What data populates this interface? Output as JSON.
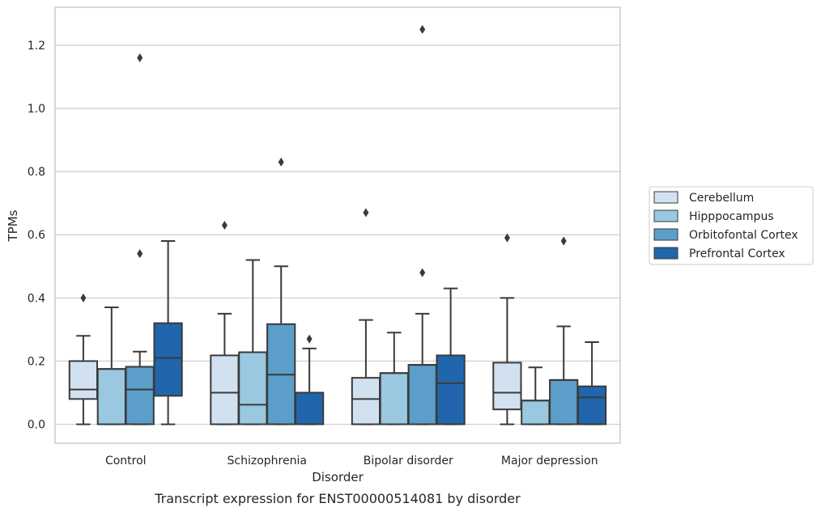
{
  "caption": "Transcript expression for ENST00000514081 by disorder",
  "chart_data": {
    "type": "box",
    "title": "",
    "xlabel": "Disorder",
    "ylabel": "TPMs",
    "ylim": [
      -0.06,
      1.32
    ],
    "yticks": [
      0.0,
      0.2,
      0.4,
      0.6,
      0.8,
      1.0,
      1.2
    ],
    "ytick_labels": [
      "0.0",
      "0.2",
      "0.4",
      "0.6",
      "0.8",
      "1.0",
      "1.2"
    ],
    "grid": "horizontal",
    "legend_position": "right",
    "categories": [
      "Control",
      "Schizophrenia",
      "Bipolar disorder",
      "Major depression"
    ],
    "series": [
      {
        "name": "Cerebellum",
        "color": "#d2e1f0",
        "boxes": [
          {
            "category": "Control",
            "whisker_low": 0.0,
            "q1": 0.08,
            "median": 0.11,
            "q3": 0.2,
            "whisker_high": 0.28,
            "outliers": [
              0.4
            ]
          },
          {
            "category": "Schizophrenia",
            "whisker_low": 0.0,
            "q1": 0.0,
            "median": 0.1,
            "q3": 0.218,
            "whisker_high": 0.35,
            "outliers": [
              0.63
            ]
          },
          {
            "category": "Bipolar disorder",
            "whisker_low": 0.0,
            "q1": 0.0,
            "median": 0.08,
            "q3": 0.147,
            "whisker_high": 0.33,
            "outliers": [
              0.67
            ]
          },
          {
            "category": "Major depression",
            "whisker_low": 0.0,
            "q1": 0.047,
            "median": 0.1,
            "q3": 0.195,
            "whisker_high": 0.4,
            "outliers": [
              0.59
            ]
          }
        ]
      },
      {
        "name": "Hipppocampus",
        "color": "#9ac8e0",
        "boxes": [
          {
            "category": "Control",
            "whisker_low": 0.0,
            "q1": 0.0,
            "median": 0.175,
            "q3": 0.175,
            "whisker_high": 0.37,
            "outliers": []
          },
          {
            "category": "Schizophrenia",
            "whisker_low": 0.0,
            "q1": 0.0,
            "median": 0.062,
            "q3": 0.228,
            "whisker_high": 0.52,
            "outliers": []
          },
          {
            "category": "Bipolar disorder",
            "whisker_low": 0.0,
            "q1": 0.0,
            "median": 0.162,
            "q3": 0.162,
            "whisker_high": 0.29,
            "outliers": []
          },
          {
            "category": "Major depression",
            "whisker_low": 0.0,
            "q1": 0.0,
            "median": 0.075,
            "q3": 0.075,
            "whisker_high": 0.18,
            "outliers": []
          }
        ]
      },
      {
        "name": "Orbitofontal Cortex",
        "color": "#5a9ec9",
        "boxes": [
          {
            "category": "Control",
            "whisker_low": 0.0,
            "q1": 0.0,
            "median": 0.11,
            "q3": 0.182,
            "whisker_high": 0.23,
            "outliers": [
              0.54,
              1.16
            ]
          },
          {
            "category": "Schizophrenia",
            "whisker_low": 0.0,
            "q1": 0.0,
            "median": 0.157,
            "q3": 0.317,
            "whisker_high": 0.5,
            "outliers": [
              0.83
            ]
          },
          {
            "category": "Bipolar disorder",
            "whisker_low": 0.0,
            "q1": 0.0,
            "median": 0.188,
            "q3": 0.188,
            "whisker_high": 0.35,
            "outliers": [
              0.48,
              1.25
            ]
          },
          {
            "category": "Major depression",
            "whisker_low": 0.0,
            "q1": 0.0,
            "median": 0.14,
            "q3": 0.14,
            "whisker_high": 0.31,
            "outliers": [
              0.58
            ]
          }
        ]
      },
      {
        "name": "Prefrontal Cortex",
        "color": "#2166ac",
        "boxes": [
          {
            "category": "Control",
            "whisker_low": 0.0,
            "q1": 0.09,
            "median": 0.21,
            "q3": 0.32,
            "whisker_high": 0.58,
            "outliers": []
          },
          {
            "category": "Schizophrenia",
            "whisker_low": 0.0,
            "q1": 0.0,
            "median": 0.1,
            "q3": 0.1,
            "whisker_high": 0.24,
            "outliers": [
              0.27
            ]
          },
          {
            "category": "Bipolar disorder",
            "whisker_low": 0.0,
            "q1": 0.0,
            "median": 0.13,
            "q3": 0.218,
            "whisker_high": 0.43,
            "outliers": []
          },
          {
            "category": "Major depression",
            "whisker_low": 0.0,
            "q1": 0.0,
            "median": 0.085,
            "q3": 0.12,
            "whisker_high": 0.26,
            "outliers": []
          }
        ]
      }
    ]
  }
}
